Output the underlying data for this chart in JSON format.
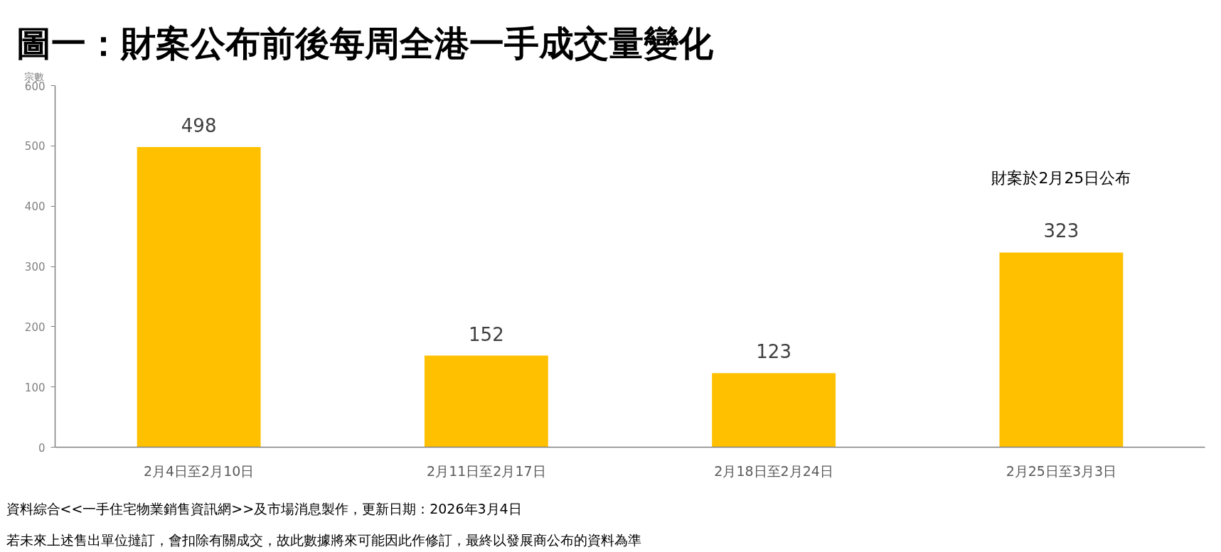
{
  "chart_data": {
    "type": "bar",
    "title": "圖一：財案公布前後每周全港一手成交量變化",
    "ylabel": "宗數",
    "categories": [
      "2月4日至2月10日",
      "2月11日至2月17日",
      "2月18日至2月24日",
      "2月25日至3月3日"
    ],
    "values": [
      498,
      152,
      123,
      323
    ],
    "color": "#ffc000",
    "ylim": [
      0,
      600
    ],
    "yticks": [
      0,
      100,
      200,
      300,
      400,
      500,
      600
    ],
    "data_labels": true,
    "grid": false,
    "annotations": [
      "財案於2月25日公布",
      "資料綜合<<一手住宅物業銷售資訊網>>及市場消息製作，更新日期：2026年3月4日",
      "若未來上述售出單位撻訂，會扣除有關成交，故此數據將來可能因此作修訂，最終以發展商公布的資料為準"
    ]
  }
}
